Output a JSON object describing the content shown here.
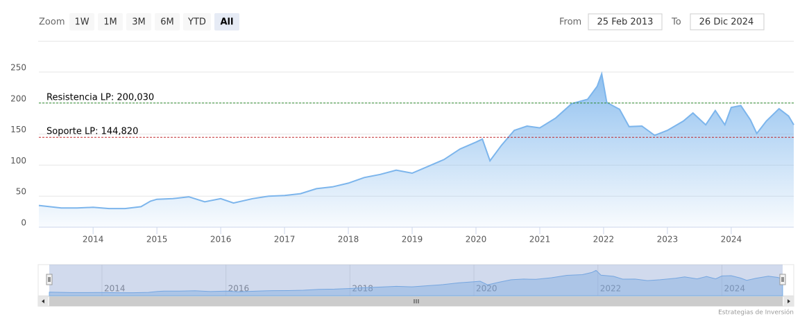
{
  "chart_data": {
    "type": "area",
    "range_selector": {
      "label": "Zoom",
      "buttons": [
        "1W",
        "1M",
        "3M",
        "6M",
        "YTD",
        "All"
      ],
      "selected": 5
    },
    "inputs": {
      "from_label": "From",
      "from": "25 Feb 2013",
      "to_label": "To",
      "to": "26 Dic 2024"
    },
    "x": [
      2013.15,
      2013.5,
      2013.75,
      2014.0,
      2014.25,
      2014.5,
      2014.75,
      2014.9,
      2015.0,
      2015.25,
      2015.5,
      2015.75,
      2016.0,
      2016.2,
      2016.5,
      2016.75,
      2017.0,
      2017.25,
      2017.5,
      2017.75,
      2018.0,
      2018.25,
      2018.5,
      2018.75,
      2019.0,
      2019.25,
      2019.5,
      2019.75,
      2020.0,
      2020.1,
      2020.22,
      2020.4,
      2020.6,
      2020.8,
      2021.0,
      2021.25,
      2021.5,
      2021.75,
      2021.9,
      2021.97,
      2022.05,
      2022.25,
      2022.4,
      2022.6,
      2022.8,
      2023.0,
      2023.25,
      2023.4,
      2023.6,
      2023.75,
      2023.9,
      2024.0,
      2024.15,
      2024.3,
      2024.4,
      2024.55,
      2024.75,
      2024.9,
      2024.98
    ],
    "values": [
      35,
      31,
      31,
      32,
      30,
      30,
      33,
      42,
      45,
      46,
      49,
      41,
      46,
      39,
      46,
      50,
      51,
      54,
      62,
      65,
      71,
      80,
      85,
      92,
      87,
      98,
      109,
      126,
      137,
      142,
      107,
      132,
      156,
      163,
      160,
      176,
      199,
      206,
      227,
      247,
      201,
      190,
      162,
      163,
      148,
      156,
      171,
      184,
      165,
      188,
      165,
      193,
      196,
      173,
      151,
      171,
      191,
      179,
      165
    ],
    "color": "#7cb5ec",
    "xlim": [
      2013.15,
      2024.98
    ],
    "xticks": [
      2014,
      2015,
      2016,
      2017,
      2018,
      2019,
      2020,
      2021,
      2022,
      2023,
      2024
    ],
    "ylim": [
      0,
      250
    ],
    "yticks": [
      0,
      50,
      100,
      150,
      200,
      250
    ],
    "grid": true,
    "plot_lines": [
      {
        "value": 200.03,
        "label": "Resistencia LP: 200,030",
        "color": "#2e8b2e"
      },
      {
        "value": 144.82,
        "label": "Soporte LP: 144,820",
        "color": "#c0282d"
      }
    ],
    "navigator_xticks": [
      2014,
      2016,
      2018,
      2020,
      2022,
      2024
    ],
    "credits": "Estrategias de Inversión"
  }
}
